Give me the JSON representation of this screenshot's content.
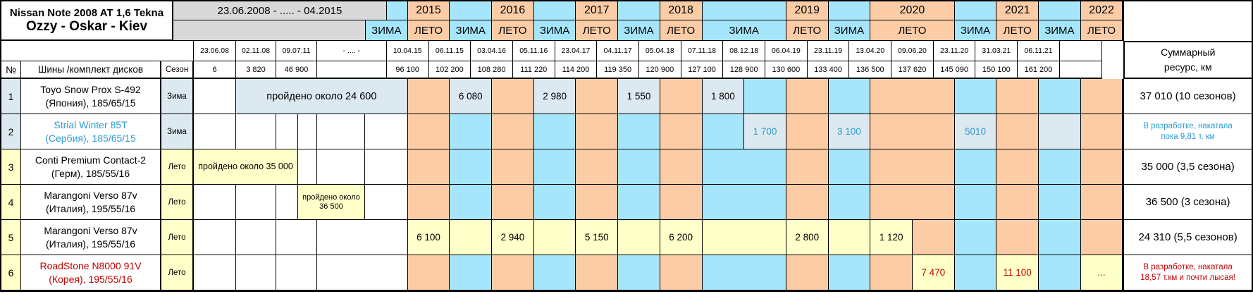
{
  "title": {
    "line1": "Nissan Note 2008 AT 1,6 Tekna",
    "line2": "Ozzy - Oskar - Kiev"
  },
  "header": {
    "range": "23.06.2008 - ..... - 04.2015",
    "winter": "ЗИМА",
    "summer": "ЛЕТО",
    "years": [
      "2015",
      "2016",
      "2017",
      "2018",
      "2019",
      "2020",
      "2021",
      "2022"
    ],
    "dates": [
      "23.06.08",
      "02.11.08",
      "09.07.11",
      "- .... -",
      "10.04.15",
      "06.11.15",
      "03.04.16",
      "05.11.16",
      "23.04.17",
      "04.11.17",
      "05.04.18",
      "07.11.18",
      "08.12.18",
      "06.04.19",
      "23.11.19",
      "13.04.20",
      "09.06.20",
      "23.11.20",
      "31.03.21",
      "06.11.21",
      ""
    ],
    "odometer": [
      "6",
      "3 820",
      "46 900",
      "",
      "96 100",
      "102 200",
      "108 280",
      "111 220",
      "114 200",
      "119 350",
      "120 900",
      "127 100",
      "128 900",
      "130 600",
      "133 400",
      "136 500",
      "137 620",
      "145 090",
      "150 100",
      "161 200",
      ""
    ],
    "col_num": "№",
    "col_tires": "Шины /комплект дисков",
    "col_season": "Сезон",
    "summary_line1": "Суммарный",
    "summary_line2": "ресурс, км"
  },
  "rows": [
    {
      "num": "1",
      "name1": "Toyo Snow Prox S-492",
      "name2": "(Япония), 185/65/15",
      "season": "Зима",
      "note": "пройдено около 24 600",
      "v1": "6 080",
      "v2": "2 980",
      "v3": "1 550",
      "v4": "1 800",
      "summary": "37 010 (10 сезонов)"
    },
    {
      "num": "2",
      "name1": "Strial Winter 85T",
      "name2": "(Сербия), 185/65/15",
      "season": "Зима",
      "v1": "1 700",
      "v2": "3 100",
      "v3": "5010",
      "summary1": "В разработке, накатала",
      "summary2": "пока 9,81  т. км"
    },
    {
      "num": "3",
      "name1": "Conti Premium Contact-2",
      "name2": "(Герм), 185/55/16",
      "season": "Лето",
      "note": "пройдено около 35 000",
      "summary": "35 000 (3,5 сезона)"
    },
    {
      "num": "4",
      "name1": "Marangoni Verso 87v",
      "name2": "(Италия), 195/55/16",
      "season": "Лето",
      "note": "пройдено около 36 500",
      "summary": "36 500 (3 сезона)"
    },
    {
      "num": "5",
      "name1": "Marangoni Verso 87v",
      "name2": "(Италия), 195/55/16",
      "season": "Лето",
      "v1": "6 100",
      "v2": "2 940",
      "v3": "5 150",
      "v4": "6 200",
      "v5": "2 800",
      "v6": "1 120",
      "summary": "24 310 (5,5 сезонов)"
    },
    {
      "num": "6",
      "name1": "RoadStone N8000 91V",
      "name2": "(Корея), 195/55/16",
      "season": "Лето",
      "v1": "7 470",
      "v2": "11 100",
      "v3": "...",
      "summary1": "В разработке, накатала",
      "summary2": "18,57 т.км и почти лысая!"
    }
  ],
  "colors": {
    "winter_cell": "#A5E6FC",
    "summer_cell": "#FBCCA6",
    "winter_value_cell": "#DCE9F1",
    "summer_value_cell": "#FFFFC9",
    "header_gray": "#D9D9D9",
    "accent_blue": "#2E9BD5",
    "accent_red": "#C00000"
  }
}
